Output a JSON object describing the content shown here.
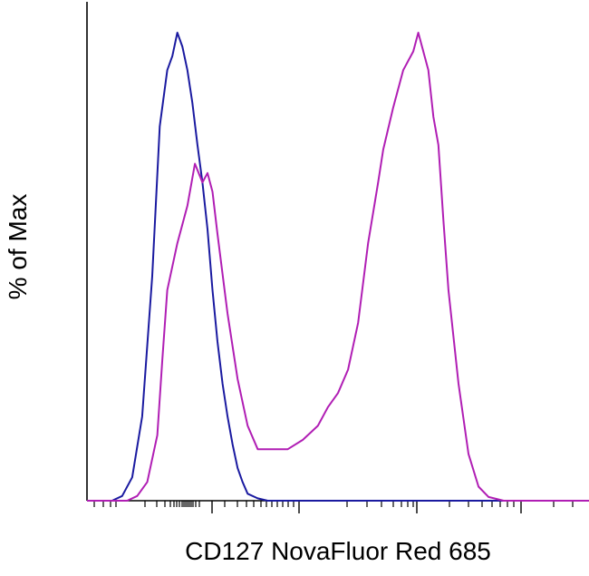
{
  "chart_data": {
    "type": "line",
    "title": "",
    "xlabel": "CD127 NovaFluor Red 685",
    "ylabel": "% of Max",
    "xscale": "biexponential",
    "x_tick_labels": [],
    "y_tick_labels": [],
    "ylim": [
      0,
      100
    ],
    "grid": false,
    "legend": "none",
    "series": [
      {
        "color": "#1a1aa0",
        "points": [
          [
            0.0,
            0
          ],
          [
            0.05,
            0
          ],
          [
            0.07,
            1
          ],
          [
            0.09,
            5
          ],
          [
            0.11,
            18
          ],
          [
            0.13,
            48
          ],
          [
            0.145,
            80
          ],
          [
            0.16,
            92
          ],
          [
            0.17,
            95
          ],
          [
            0.18,
            100
          ],
          [
            0.19,
            97
          ],
          [
            0.2,
            92
          ],
          [
            0.21,
            85
          ],
          [
            0.22,
            76
          ],
          [
            0.23,
            68
          ],
          [
            0.24,
            58
          ],
          [
            0.25,
            45
          ],
          [
            0.26,
            34
          ],
          [
            0.27,
            25
          ],
          [
            0.28,
            18
          ],
          [
            0.29,
            12
          ],
          [
            0.3,
            7
          ],
          [
            0.31,
            4
          ],
          [
            0.32,
            1.5
          ],
          [
            0.34,
            0.5
          ],
          [
            0.36,
            0
          ],
          [
            1.0,
            0
          ]
        ]
      },
      {
        "color": "#b01eb4",
        "points": [
          [
            0.0,
            0
          ],
          [
            0.08,
            0
          ],
          [
            0.1,
            1
          ],
          [
            0.12,
            4
          ],
          [
            0.14,
            14
          ],
          [
            0.15,
            30
          ],
          [
            0.16,
            45
          ],
          [
            0.18,
            55
          ],
          [
            0.2,
            63
          ],
          [
            0.215,
            72
          ],
          [
            0.23,
            68
          ],
          [
            0.24,
            70
          ],
          [
            0.25,
            66
          ],
          [
            0.26,
            57
          ],
          [
            0.28,
            40
          ],
          [
            0.3,
            26
          ],
          [
            0.32,
            16
          ],
          [
            0.34,
            11
          ],
          [
            0.37,
            11
          ],
          [
            0.4,
            11
          ],
          [
            0.43,
            13
          ],
          [
            0.46,
            16
          ],
          [
            0.48,
            20
          ],
          [
            0.5,
            23
          ],
          [
            0.52,
            28
          ],
          [
            0.54,
            38
          ],
          [
            0.56,
            55
          ],
          [
            0.58,
            68
          ],
          [
            0.59,
            75
          ],
          [
            0.61,
            84
          ],
          [
            0.63,
            92
          ],
          [
            0.65,
            96
          ],
          [
            0.66,
            100
          ],
          [
            0.68,
            92
          ],
          [
            0.69,
            82
          ],
          [
            0.7,
            76
          ],
          [
            0.71,
            60
          ],
          [
            0.72,
            45
          ],
          [
            0.74,
            25
          ],
          [
            0.76,
            10
          ],
          [
            0.78,
            3
          ],
          [
            0.8,
            0.8
          ],
          [
            0.83,
            0
          ],
          [
            1.0,
            0
          ]
        ]
      }
    ]
  }
}
